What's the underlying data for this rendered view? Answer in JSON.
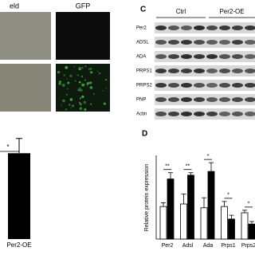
{
  "images": {
    "columns": [
      "eld",
      "GFP"
    ]
  },
  "blot": {
    "panel": "C",
    "groups": [
      "Ctrl",
      "Per2-OE"
    ],
    "rows": [
      "Per2",
      "ADSL",
      "ADA",
      "PRPS1",
      "PRPS2",
      "PNP",
      "Actin"
    ]
  },
  "chart_data": [
    {
      "type": "bar",
      "categories": [
        "Per2-OE"
      ],
      "values": [
        2.9
      ],
      "errors": [
        0.5
      ],
      "color": "#000000",
      "ylim": [
        0,
        3.5
      ],
      "annotations": [
        "*"
      ]
    },
    {
      "type": "grouped-bar",
      "panel": "D",
      "ylabel": "Relative protein expression",
      "categories": [
        "Per2",
        "Adsl",
        "Ada",
        "Prps1",
        "Prps2"
      ],
      "series": [
        {
          "color": "#ffffff",
          "values": [
            1.3,
            1.4,
            1.25,
            1.3,
            1.05
          ],
          "errors": [
            0.15,
            0.4,
            0.4,
            0.2,
            0.1
          ]
        },
        {
          "color": "#000000",
          "values": [
            2.4,
            2.55,
            2.7,
            0.8,
            0.6
          ],
          "errors": [
            0.25,
            0.1,
            0.35,
            0.15,
            0.1
          ]
        }
      ],
      "ylim": [
        0,
        3.5
      ],
      "annotations": [
        "**",
        "**",
        "*",
        "*",
        "*"
      ]
    }
  ]
}
